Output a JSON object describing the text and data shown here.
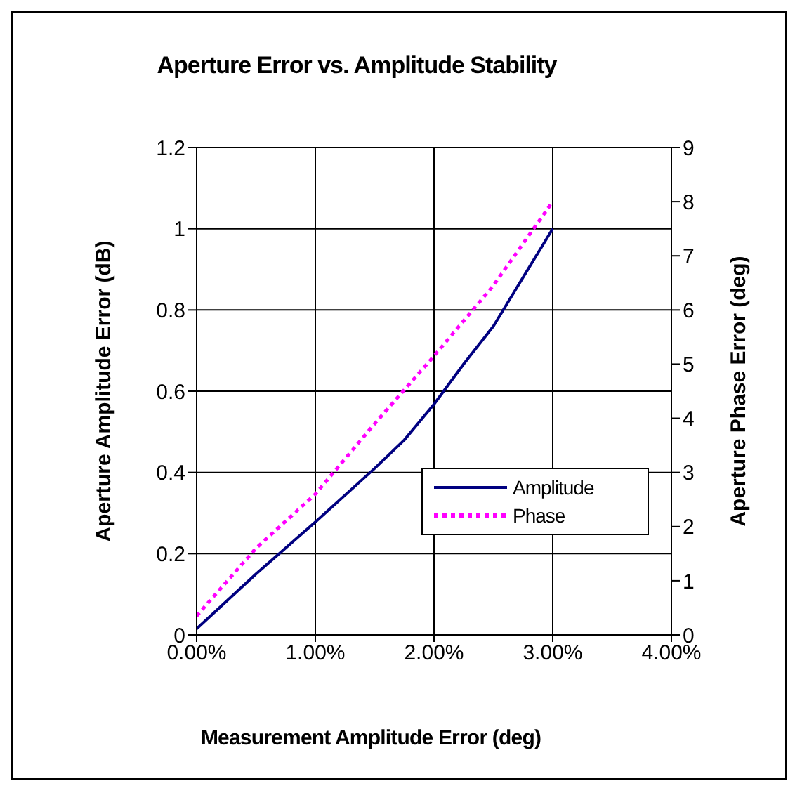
{
  "chart_data": {
    "type": "line",
    "title": "Aperture Error vs. Amplitude Stability",
    "xlabel": "Measurement Amplitude Error (deg)",
    "ylabel": "Aperture Amplitude Error (dB)",
    "y2label": "Aperture Phase Error (deg)",
    "series": [
      {
        "name": "Amplitude",
        "color": "#000080",
        "line_style": "solid",
        "x": [
          0,
          0.5,
          1,
          1.5,
          1.75,
          2,
          2.25,
          2.5,
          2.75,
          3
        ],
        "values": [
          0.015,
          0.15,
          0.278,
          0.41,
          0.48,
          0.568,
          0.667,
          0.76,
          0.88,
          1.0
        ]
      },
      {
        "name": "Phase",
        "color": "#ff00ff",
        "line_style": "dotted",
        "axis": "y2",
        "x": [
          0,
          0.5,
          1,
          1.5,
          2,
          2.5,
          3
        ],
        "values": [
          0.35,
          1.6,
          2.6,
          3.9,
          5.15,
          6.45,
          8.0
        ]
      }
    ],
    "xlim": [
      0,
      4
    ],
    "xticks": [
      {
        "value": 0,
        "label": "0.00%"
      },
      {
        "value": 1,
        "label": "1.00%"
      },
      {
        "value": 2,
        "label": "2.00%"
      },
      {
        "value": 3,
        "label": "3.00%"
      },
      {
        "value": 4,
        "label": "4.00%"
      }
    ],
    "ylim": [
      0,
      1.2
    ],
    "yticks": [
      0,
      0.2,
      0.4,
      0.6,
      0.8,
      1,
      1.2
    ],
    "y2lim": [
      0,
      9
    ],
    "y2ticks": [
      0,
      1,
      2,
      3,
      4,
      5,
      6,
      7,
      8,
      9
    ],
    "grid": true,
    "legend": "bottom right",
    "marker": "none"
  }
}
